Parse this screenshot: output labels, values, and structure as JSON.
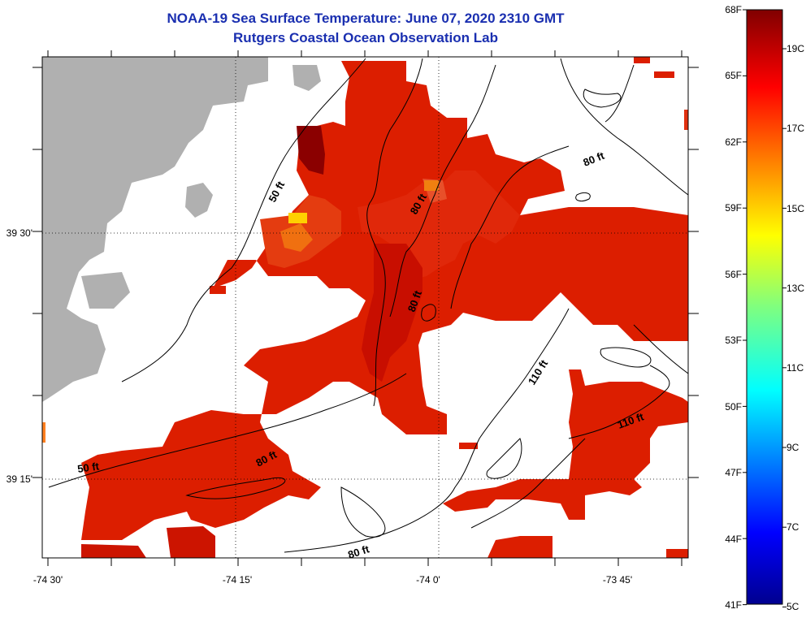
{
  "header": {
    "title": "NOAA-19 Sea Surface Temperature:  June 07, 2020 2310 GMT",
    "subtitle": "Rutgers Coastal Ocean Observation Lab"
  },
  "map": {
    "lon_ticks": [
      "-74 30'",
      "-74 15'",
      "-74 0'",
      "-73 45'"
    ],
    "lat_ticks": [
      "39 30'",
      "39 15'"
    ],
    "contour_labels": [
      "50 ft",
      "50 ft",
      "80 ft",
      "80 ft",
      "80 ft",
      "80 ft",
      "80 ft",
      "110 ft",
      "110 ft"
    ],
    "colors": {
      "land": "#b0b0b0",
      "no_data": "#ffffff",
      "contour": "#000000"
    }
  },
  "colorbar": {
    "fahrenheit_labels": [
      "68F",
      "65F",
      "62F",
      "59F",
      "56F",
      "53F",
      "50F",
      "47F",
      "44F",
      "41F"
    ],
    "celsius_labels": [
      "19C",
      "17C",
      "15C",
      "13C",
      "11C",
      "9C",
      "7C",
      "5C"
    ]
  }
}
